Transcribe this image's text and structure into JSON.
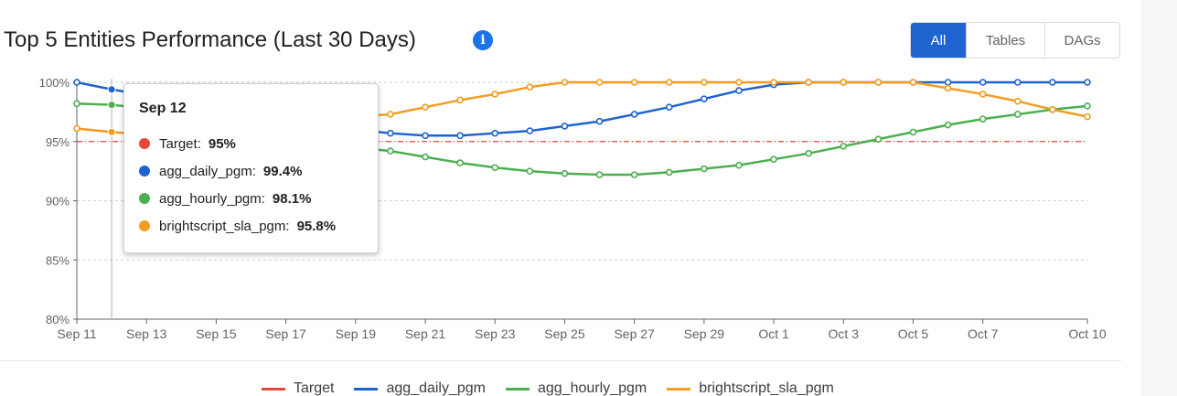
{
  "header": {
    "title": "Top 5 Entities Performance (Last 30 Days)",
    "info_icon": "info-icon",
    "filters": [
      {
        "label": "All",
        "active": true
      },
      {
        "label": "Tables",
        "active": false
      },
      {
        "label": "DAGs",
        "active": false
      }
    ]
  },
  "tooltip": {
    "date": "Sep 12",
    "rows": [
      {
        "name": "Target:",
        "value": "95%",
        "color": "#e5483a"
      },
      {
        "name": "agg_daily_pgm:",
        "value": "99.4%",
        "color": "#1f63d0"
      },
      {
        "name": "agg_hourly_pgm:",
        "value": "98.1%",
        "color": "#4caf50"
      },
      {
        "name": "brightscript_sla_pgm:",
        "value": "95.8%",
        "color": "#f39c1f"
      }
    ]
  },
  "chart_data": {
    "type": "line",
    "x": [
      "Sep 11",
      "Sep 12",
      "Sep 13",
      "Sep 14",
      "Sep 15",
      "Sep 16",
      "Sep 17",
      "Sep 18",
      "Sep 19",
      "Sep 20",
      "Sep 21",
      "Sep 22",
      "Sep 23",
      "Sep 24",
      "Sep 25",
      "Sep 26",
      "Sep 27",
      "Sep 28",
      "Sep 29",
      "Sep 30",
      "Oct 1",
      "Oct 2",
      "Oct 3",
      "Oct 4",
      "Oct 5",
      "Oct 6",
      "Oct 7",
      "Oct 8",
      "Oct 9",
      "Oct 10"
    ],
    "x_tick_labels": [
      "Sep 11",
      "Sep 13",
      "Sep 15",
      "Sep 17",
      "Sep 19",
      "Sep 21",
      "Sep 23",
      "Sep 25",
      "Sep 27",
      "Sep 29",
      "Oct 1",
      "Oct 3",
      "Oct 5",
      "Oct 7",
      "Oct 10"
    ],
    "y_tick_labels": [
      "100%",
      "95%",
      "90%",
      "85%",
      "80%"
    ],
    "yticks": [
      100,
      95,
      90,
      85,
      80
    ],
    "ylim": [
      80,
      100.5
    ],
    "grid": true,
    "legend": "bottom",
    "highlight_x": "Sep 12",
    "target": {
      "name": "Target",
      "value": 95,
      "color": "#e5483a"
    },
    "series": [
      {
        "name": "agg_daily_pgm",
        "color": "#1f63d0",
        "values": [
          100.0,
          99.4,
          98.9,
          98.3,
          97.8,
          97.2,
          96.8,
          96.4,
          96.0,
          95.7,
          95.5,
          95.5,
          95.7,
          95.9,
          96.3,
          96.7,
          97.3,
          97.9,
          98.6,
          99.3,
          99.8,
          100.0,
          100.0,
          100.0,
          100.0,
          100.0,
          100.0,
          100.0,
          100.0,
          100.0
        ]
      },
      {
        "name": "agg_hourly_pgm",
        "color": "#4caf50",
        "values": [
          98.2,
          98.1,
          97.8,
          97.3,
          96.6,
          96.0,
          95.4,
          94.8,
          94.5,
          94.2,
          93.7,
          93.2,
          92.8,
          92.5,
          92.3,
          92.2,
          92.2,
          92.4,
          92.7,
          93.0,
          93.5,
          94.0,
          94.6,
          95.2,
          95.8,
          96.4,
          96.9,
          97.3,
          97.7,
          98.0
        ]
      },
      {
        "name": "brightscript_sla_pgm",
        "color": "#f39c1f",
        "values": [
          96.1,
          95.8,
          95.6,
          95.6,
          95.8,
          96.1,
          96.5,
          96.9,
          97.1,
          97.3,
          97.9,
          98.5,
          99.0,
          99.6,
          100.0,
          100.0,
          100.0,
          100.0,
          100.0,
          100.0,
          100.0,
          100.0,
          100.0,
          100.0,
          100.0,
          99.5,
          99.0,
          98.4,
          97.7,
          97.1
        ]
      }
    ]
  }
}
